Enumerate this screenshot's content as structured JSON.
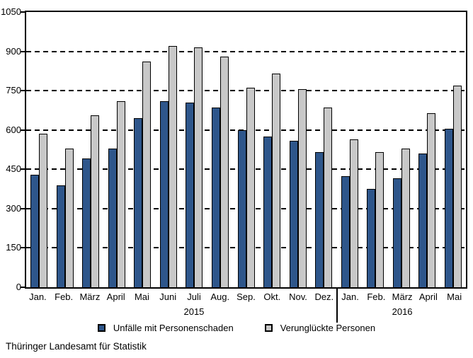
{
  "chart_data": {
    "type": "bar",
    "title": "",
    "xlabel": "",
    "ylabel": "",
    "categories": [
      "Jan.",
      "Feb.",
      "März",
      "April",
      "Mai",
      "Juni",
      "Juli",
      "Aug.",
      "Sep.",
      "Okt.",
      "Nov.",
      "Dez.",
      "Jan.",
      "Feb.",
      "März",
      "April",
      "Mai"
    ],
    "series": [
      {
        "name": "Unfälle mit Personenschaden",
        "color": "#2E568B",
        "values": [
          430,
          390,
          490,
          530,
          645,
          710,
          705,
          685,
          600,
          575,
          560,
          515,
          425,
          375,
          415,
          510,
          605
        ]
      },
      {
        "name": "Verunglückte Personen",
        "color": "#C8C8C8",
        "values": [
          585,
          530,
          655,
          710,
          860,
          920,
          915,
          880,
          760,
          815,
          755,
          685,
          565,
          515,
          530,
          665,
          770
        ]
      }
    ],
    "ylim": [
      0,
      1050
    ],
    "ytick_step": 150,
    "ytick_labels": [
      "0",
      "150",
      "300",
      "450",
      "600",
      "750",
      "900",
      "1050"
    ],
    "grid": "horizontal-dashed",
    "legend_position": "bottom",
    "year_labels": [
      {
        "label": "2015",
        "group_index": 6
      },
      {
        "label": "2016",
        "group_index": 14
      }
    ],
    "year_divider_after_index": 11
  },
  "colors": {
    "background": "#ffffff",
    "axis": "#000000",
    "bar_outline": "#000000"
  },
  "source_text": "Thüringer Landesamt für Statistik"
}
